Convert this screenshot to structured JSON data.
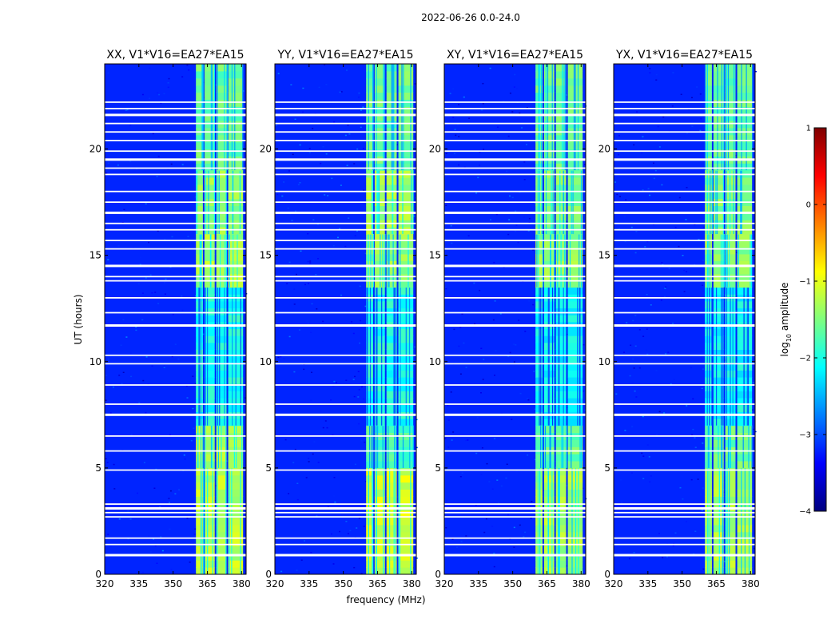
{
  "chart_data": {
    "type": "heatmap",
    "suptitle": "2022-06-26 0.0-24.0",
    "xlabel": "frequency (MHz)",
    "ylabel": "UT (hours)",
    "xlim": [
      320,
      382
    ],
    "ylim": [
      0,
      24
    ],
    "xticks": [
      320,
      335,
      350,
      365,
      380
    ],
    "yticks": [
      0,
      5,
      10,
      15,
      20
    ],
    "colorbar": {
      "label_prefix": "log",
      "label_sub": "10",
      "label_suffix": " amplitude",
      "range": [
        -4,
        1
      ],
      "ticks": [
        -4,
        -3,
        -2,
        -1,
        0,
        1
      ],
      "tick_labels": [
        "−4",
        "−3",
        "−2",
        "−1",
        "0",
        "1"
      ],
      "colors": [
        "#00007f",
        "#0000ff",
        "#007fff",
        "#00ffff",
        "#7fff7f",
        "#ffff00",
        "#ff7f00",
        "#ff0000",
        "#7f0000"
      ]
    },
    "background_level": -3.2,
    "signal_band_MHz": [
      360,
      381
    ],
    "channel_gaps_MHz": [
      363.4,
      368.6,
      373.8
    ],
    "flagged_rows_hours": [
      0.9,
      1.4,
      1.7,
      2.7,
      2.9,
      3.1,
      3.3,
      4.9,
      5.8,
      6.5,
      7.5,
      8.0,
      8.9,
      9.9,
      10.3,
      11.7,
      12.3,
      13.0,
      13.8,
      14.0,
      14.5,
      15.3,
      15.7,
      16.2,
      16.5,
      17.0,
      17.5,
      18.0,
      18.8,
      19.1,
      19.5,
      19.9,
      20.4,
      20.8,
      21.2,
      21.6,
      21.9,
      22.2
    ],
    "panels": [
      {
        "title": "XX, V1*V16=EA27*EA15",
        "signal_levels": [
          {
            "from": 0,
            "to": 5,
            "value": -1.2
          },
          {
            "from": 5,
            "to": 7,
            "value": -1.3
          },
          {
            "from": 7,
            "to": 13.5,
            "value": -2.0
          },
          {
            "from": 13.5,
            "to": 16,
            "value": -1.3
          },
          {
            "from": 16,
            "to": 19,
            "value": -1.4
          },
          {
            "from": 19,
            "to": 24,
            "value": -1.6
          }
        ]
      },
      {
        "title": "YY, V1*V16=EA27*EA15",
        "signal_levels": [
          {
            "from": 0,
            "to": 5,
            "value": -1.1
          },
          {
            "from": 5,
            "to": 7,
            "value": -1.7
          },
          {
            "from": 7,
            "to": 13.5,
            "value": -2.0
          },
          {
            "from": 13.5,
            "to": 16,
            "value": -1.4
          },
          {
            "from": 16,
            "to": 19,
            "value": -1.3
          },
          {
            "from": 19,
            "to": 24,
            "value": -1.6
          }
        ]
      },
      {
        "title": "XY, V1*V16=EA27*EA15",
        "signal_levels": [
          {
            "from": 0,
            "to": 5,
            "value": -1.3
          },
          {
            "from": 5,
            "to": 7,
            "value": -1.6
          },
          {
            "from": 7,
            "to": 13.5,
            "value": -2.1
          },
          {
            "from": 13.5,
            "to": 16,
            "value": -1.4
          },
          {
            "from": 16,
            "to": 19,
            "value": -1.5
          },
          {
            "from": 19,
            "to": 24,
            "value": -1.6
          }
        ]
      },
      {
        "title": "YX, V1*V16=EA27*EA15",
        "signal_levels": [
          {
            "from": 0,
            "to": 5,
            "value": -1.3
          },
          {
            "from": 5,
            "to": 7,
            "value": -1.6
          },
          {
            "from": 7,
            "to": 13.5,
            "value": -2.1
          },
          {
            "from": 13.5,
            "to": 16,
            "value": -1.4
          },
          {
            "from": 16,
            "to": 19,
            "value": -1.5
          },
          {
            "from": 19,
            "to": 24,
            "value": -1.6
          }
        ]
      }
    ]
  }
}
